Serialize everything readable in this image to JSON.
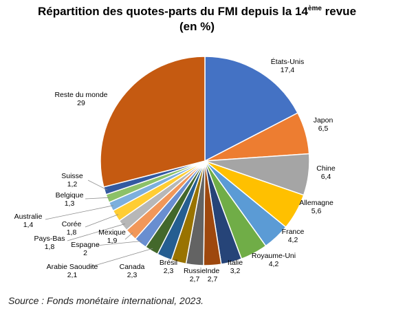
{
  "title": {
    "line1_prefix": "Répartition des quotes-parts du FMI depuis la 14",
    "line1_sup": "ème",
    "line1_suffix": " revue",
    "line2": "(en %)"
  },
  "source": "Source : Fonds monétaire international, 2023.",
  "chart_data": {
    "type": "pie",
    "title": "Répartition des quotes-parts du FMI depuis la 14ème revue (en %)",
    "start": "top",
    "direction": "clockwise",
    "slices": [
      {
        "label": "États-Unis",
        "value_text": "17,4",
        "value": 17.4,
        "color": "#4472C4"
      },
      {
        "label": "Japon",
        "value_text": "6,5",
        "value": 6.5,
        "color": "#ED7D31"
      },
      {
        "label": "Chine",
        "value_text": "6,4",
        "value": 6.4,
        "color": "#A5A5A5"
      },
      {
        "label": "Allemagne",
        "value_text": "5,6",
        "value": 5.6,
        "color": "#FFC000"
      },
      {
        "label": "France",
        "value_text": "4,2",
        "value": 4.2,
        "color": "#5B9BD5"
      },
      {
        "label": "Royaume-Uni",
        "value_text": "4,2",
        "value": 4.2,
        "color": "#70AD47"
      },
      {
        "label": "Italie",
        "value_text": "3,2",
        "value": 3.2,
        "color": "#264478"
      },
      {
        "label": "Inde",
        "value_text": "2,7",
        "value": 2.7,
        "color": "#9E480E"
      },
      {
        "label": "Russie",
        "value_text": "2,7",
        "value": 2.7,
        "color": "#636363"
      },
      {
        "label": "Brésil",
        "value_text": "2,3",
        "value": 2.3,
        "color": "#997300"
      },
      {
        "label": "Canada",
        "value_text": "2,3",
        "value": 2.3,
        "color": "#255E91"
      },
      {
        "label": "Arabie Saoudite",
        "value_text": "2,1",
        "value": 2.1,
        "color": "#43682B"
      },
      {
        "label": "Espagne",
        "value_text": "2",
        "value": 2.0,
        "color": "#698ED0"
      },
      {
        "label": "Mexique",
        "value_text": "1,9",
        "value": 1.9,
        "color": "#F1975A"
      },
      {
        "label": "Pays-Bas",
        "value_text": "1,8",
        "value": 1.8,
        "color": "#B7B7B7"
      },
      {
        "label": "Corée",
        "value_text": "1,8",
        "value": 1.8,
        "color": "#FFCD33"
      },
      {
        "label": "Australie",
        "value_text": "1,4",
        "value": 1.4,
        "color": "#7CAFDD"
      },
      {
        "label": "Belgique",
        "value_text": "1,3",
        "value": 1.3,
        "color": "#8CC168"
      },
      {
        "label": "Suisse",
        "value_text": "1,2",
        "value": 1.2,
        "color": "#335AA1"
      },
      {
        "label": "Reste du monde",
        "value_text": "29",
        "value": 29.0,
        "color": "#C55A11"
      }
    ]
  }
}
